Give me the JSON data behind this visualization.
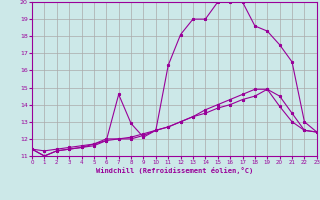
{
  "xlabel": "Windchill (Refroidissement éolien,°C)",
  "background_color": "#cce8e8",
  "grid_color": "#aaaaaa",
  "line_color": "#990099",
  "xmin": 0,
  "xmax": 23,
  "ymin": 11,
  "ymax": 20,
  "series1_x": [
    0,
    1,
    2,
    3,
    4,
    5,
    6,
    7,
    8,
    9,
    10,
    11,
    12,
    13,
    14,
    15,
    16,
    17,
    18,
    19,
    20,
    21,
    22,
    23
  ],
  "series1_y": [
    11.4,
    11.3,
    11.4,
    11.5,
    11.6,
    11.7,
    11.9,
    12.0,
    12.1,
    12.3,
    12.5,
    12.7,
    13.0,
    13.3,
    13.7,
    14.0,
    14.3,
    14.6,
    14.9,
    14.9,
    13.9,
    13.0,
    12.5,
    12.4
  ],
  "series2_x": [
    0,
    1,
    2,
    3,
    4,
    5,
    6,
    7,
    8,
    9,
    10,
    11,
    12,
    13,
    14,
    15,
    16,
    17,
    18,
    19,
    20,
    21,
    22,
    23
  ],
  "series2_y": [
    11.4,
    11.0,
    11.3,
    11.4,
    11.5,
    11.6,
    11.9,
    14.6,
    12.9,
    12.1,
    12.5,
    16.3,
    18.1,
    19.0,
    19.0,
    20.0,
    20.0,
    20.0,
    18.6,
    18.3,
    17.5,
    16.5,
    13.0,
    12.4
  ],
  "series3_x": [
    0,
    1,
    2,
    3,
    4,
    5,
    6,
    7,
    8,
    9,
    10,
    11,
    12,
    13,
    14,
    15,
    16,
    17,
    18,
    19,
    20,
    21,
    22,
    23
  ],
  "series3_y": [
    11.4,
    11.0,
    11.3,
    11.4,
    11.5,
    11.7,
    12.0,
    12.0,
    12.0,
    12.2,
    12.5,
    12.7,
    13.0,
    13.3,
    13.5,
    13.8,
    14.0,
    14.3,
    14.5,
    14.9,
    14.5,
    13.5,
    12.5,
    12.4
  ]
}
